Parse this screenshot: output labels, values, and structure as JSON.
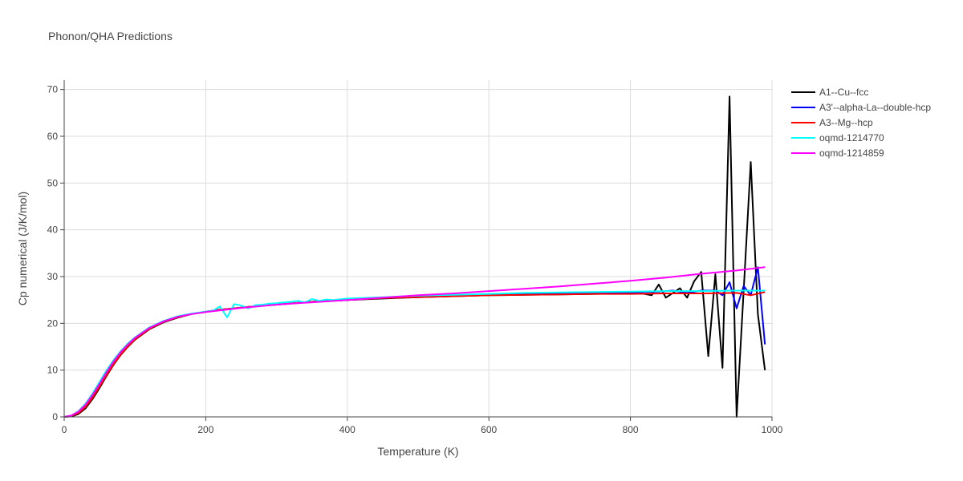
{
  "chart_data": {
    "type": "line",
    "title": "Phonon/QHA Predictions",
    "xlabel": "Temperature (K)",
    "ylabel": "Cp numerical (J/K/mol)",
    "xlim": [
      0,
      1000
    ],
    "ylim": [
      0,
      72
    ],
    "x_ticks": [
      0,
      200,
      400,
      600,
      800,
      1000
    ],
    "y_ticks": [
      0,
      10,
      20,
      30,
      40,
      50,
      60,
      70
    ],
    "grid": true,
    "legend_position": "top-right",
    "series": [
      {
        "name": "A1--Cu--fcc",
        "color": "#000000",
        "x": [
          0,
          10,
          20,
          30,
          40,
          50,
          60,
          70,
          80,
          90,
          100,
          120,
          140,
          160,
          180,
          200,
          220,
          240,
          260,
          280,
          300,
          350,
          400,
          450,
          500,
          550,
          600,
          650,
          700,
          750,
          800,
          810,
          820,
          830,
          840,
          850,
          860,
          870,
          880,
          890,
          900,
          910,
          920,
          930,
          940,
          950,
          960,
          970,
          980,
          990
        ],
        "y": [
          0,
          0.1,
          0.6,
          1.8,
          3.8,
          6.2,
          8.8,
          11.2,
          13.3,
          15.0,
          16.5,
          18.7,
          20.2,
          21.2,
          22.0,
          22.5,
          22.9,
          23.2,
          23.5,
          23.8,
          24.0,
          24.6,
          25.0,
          25.3,
          25.6,
          25.8,
          26.0,
          26.1,
          26.2,
          26.3,
          26.4,
          26.5,
          26.3,
          26.0,
          28.3,
          25.5,
          26.5,
          27.5,
          25.5,
          29.0,
          31.0,
          13.0,
          30.5,
          10.5,
          68.5,
          0,
          27.0,
          54.5,
          22.0,
          10.0
        ]
      },
      {
        "name": "A3'--alpha-La--double-hcp",
        "color": "#0000ff",
        "x": [
          0,
          10,
          20,
          30,
          40,
          50,
          60,
          70,
          80,
          90,
          100,
          120,
          140,
          160,
          180,
          200,
          220,
          240,
          260,
          280,
          300,
          350,
          400,
          450,
          500,
          550,
          600,
          650,
          700,
          750,
          800,
          820,
          840,
          860,
          880,
          900,
          920,
          930,
          940,
          950,
          960,
          970,
          980,
          990
        ],
        "y": [
          0,
          0.2,
          0.9,
          2.3,
          4.4,
          6.8,
          9.3,
          11.6,
          13.6,
          15.3,
          16.7,
          18.9,
          20.3,
          21.3,
          22.0,
          22.5,
          22.9,
          23.2,
          23.5,
          23.8,
          24.0,
          24.6,
          25.0,
          25.4,
          25.7,
          25.9,
          26.1,
          26.3,
          26.4,
          26.5,
          26.6,
          26.7,
          26.8,
          27.0,
          26.5,
          27.0,
          27.0,
          26.0,
          28.8,
          23.2,
          28.0,
          26.0,
          32.0,
          15.5
        ]
      },
      {
        "name": "A3--Mg--hcp",
        "color": "#ff0000",
        "x": [
          0,
          10,
          20,
          30,
          40,
          50,
          60,
          70,
          80,
          90,
          100,
          120,
          140,
          160,
          180,
          200,
          220,
          240,
          260,
          280,
          300,
          350,
          400,
          450,
          500,
          550,
          600,
          650,
          700,
          750,
          800,
          850,
          900,
          950,
          970,
          990
        ],
        "y": [
          0,
          0.2,
          0.8,
          2.1,
          4.1,
          6.5,
          9.0,
          11.3,
          13.4,
          15.1,
          16.6,
          18.8,
          20.3,
          21.3,
          22.0,
          22.5,
          22.9,
          23.2,
          23.5,
          23.8,
          24.0,
          24.6,
          25.0,
          25.4,
          25.6,
          25.8,
          26.0,
          26.1,
          26.2,
          26.3,
          26.3,
          26.4,
          26.4,
          26.5,
          26.0,
          26.7
        ]
      },
      {
        "name": "oqmd-1214770",
        "color": "#00ffff",
        "x": [
          0,
          10,
          20,
          30,
          40,
          50,
          60,
          70,
          80,
          90,
          100,
          120,
          140,
          160,
          180,
          200,
          210,
          220,
          230,
          240,
          250,
          260,
          270,
          280,
          290,
          300,
          310,
          320,
          330,
          340,
          350,
          360,
          370,
          380,
          400,
          450,
          500,
          550,
          600,
          650,
          700,
          750,
          800,
          850,
          900,
          950,
          990
        ],
        "y": [
          0,
          0.3,
          1.2,
          2.8,
          5.0,
          7.5,
          10.0,
          12.2,
          14.1,
          15.7,
          17.0,
          19.1,
          20.5,
          21.5,
          22.1,
          22.5,
          22.7,
          23.6,
          21.3,
          24.1,
          23.8,
          23.2,
          23.9,
          24.0,
          24.2,
          24.3,
          24.5,
          24.6,
          24.8,
          24.5,
          25.2,
          24.8,
          25.1,
          25.0,
          25.3,
          25.6,
          25.9,
          26.1,
          26.3,
          26.5,
          26.6,
          26.7,
          26.8,
          26.9,
          26.9,
          27.0,
          27.0
        ]
      },
      {
        "name": "oqmd-1214859",
        "color": "#ff00ff",
        "x": [
          0,
          10,
          20,
          30,
          40,
          50,
          60,
          70,
          80,
          90,
          100,
          120,
          140,
          160,
          180,
          200,
          250,
          300,
          350,
          400,
          450,
          500,
          550,
          600,
          650,
          700,
          750,
          800,
          850,
          900,
          950,
          990
        ],
        "y": [
          0,
          0.3,
          1.1,
          2.6,
          4.7,
          7.1,
          9.6,
          11.9,
          13.9,
          15.5,
          16.9,
          19.0,
          20.4,
          21.4,
          22.0,
          22.4,
          23.3,
          24.0,
          24.5,
          25.0,
          25.5,
          26.0,
          26.4,
          26.9,
          27.4,
          27.9,
          28.5,
          29.1,
          29.8,
          30.6,
          31.3,
          32.0
        ]
      }
    ]
  }
}
